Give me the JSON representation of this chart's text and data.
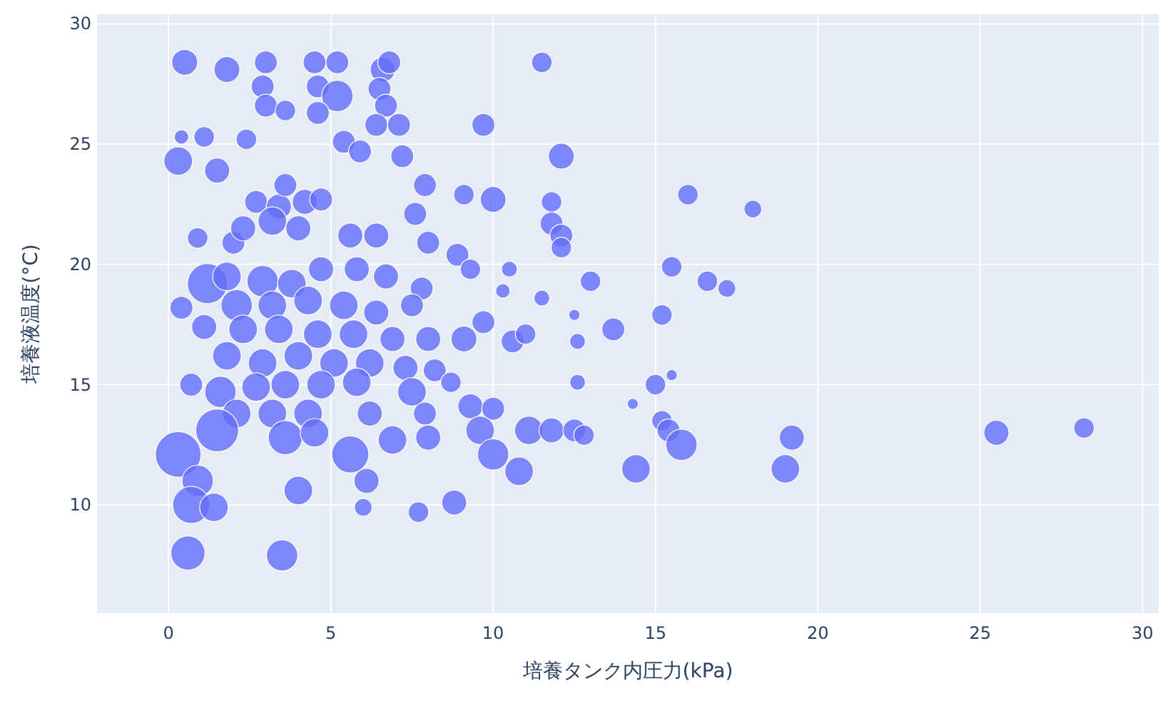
{
  "chart_data": {
    "type": "bubble",
    "xlabel": "培養タンク内圧力(kPa)",
    "ylabel": "培養液温度(°C)",
    "xlim": [
      -2.2,
      30.5
    ],
    "ylim": [
      5.5,
      30.4
    ],
    "xticks": [
      0,
      5,
      10,
      15,
      20,
      25,
      30
    ],
    "yticks": [
      10,
      15,
      20,
      25,
      30
    ],
    "grid": true,
    "series": [
      {
        "color": "#636efa",
        "x": [
          0.5,
          1.8,
          3.0,
          4.5,
          5.2,
          6.6,
          6.8,
          11.5,
          2.9,
          3.0,
          4.6,
          5.2,
          6.5,
          6.7,
          3.6,
          4.6,
          0.4,
          1.1,
          2.4,
          0.3,
          1.5,
          6.4,
          7.1,
          9.7,
          12.1,
          5.4,
          5.9,
          7.2,
          2.7,
          3.4,
          3.6,
          4.2,
          4.7,
          10.0,
          9.1,
          11.8,
          16.0,
          18.0,
          7.9,
          7.6,
          0.9,
          2.0,
          2.3,
          3.2,
          4.0,
          5.6,
          6.4,
          8.0,
          11.8,
          12.1,
          12.1,
          15.5,
          16.6,
          17.2,
          13.0,
          8.9,
          9.3,
          10.5,
          1.2,
          0.4,
          1.8,
          2.9,
          3.8,
          4.7,
          5.8,
          6.7,
          7.8,
          2.1,
          3.2,
          4.3,
          5.4,
          6.4,
          7.5,
          1.1,
          2.3,
          3.4,
          4.6,
          5.7,
          6.9,
          8.0,
          9.1,
          9.7,
          10.3,
          11.5,
          10.6,
          11.0,
          12.5,
          12.6,
          13.7,
          15.2,
          1.8,
          2.9,
          4.0,
          5.1,
          6.2,
          7.3,
          8.2,
          0.7,
          1.6,
          2.7,
          3.6,
          4.7,
          5.8,
          7.5,
          8.7,
          12.6,
          15.0,
          15.5,
          14.3,
          2.1,
          3.2,
          4.3,
          6.2,
          7.9,
          9.3,
          10.0,
          1.5,
          3.6,
          4.5,
          5.6,
          6.9,
          8.0,
          9.6,
          11.1,
          11.8,
          12.5,
          12.8,
          15.2,
          15.4,
          15.8,
          19.2,
          25.5,
          28.2,
          0.3,
          10.0,
          0.9,
          6.1,
          10.8,
          14.4,
          19.0,
          0.7,
          1.4,
          4.0,
          6.0,
          7.7,
          8.8,
          0.6,
          3.5
        ],
        "values": [
          28.4,
          28.1,
          28.4,
          28.4,
          28.4,
          28.1,
          28.4,
          28.4,
          27.4,
          26.6,
          27.4,
          27.0,
          27.3,
          26.6,
          26.4,
          26.3,
          25.3,
          25.3,
          25.2,
          24.3,
          23.9,
          25.8,
          25.8,
          25.8,
          24.5,
          25.1,
          24.7,
          24.5,
          22.6,
          22.4,
          23.3,
          22.6,
          22.7,
          22.7,
          22.9,
          22.6,
          22.9,
          22.3,
          23.3,
          22.1,
          21.1,
          20.9,
          21.5,
          21.8,
          21.5,
          21.2,
          21.2,
          20.9,
          21.7,
          21.2,
          20.7,
          19.9,
          19.3,
          19.0,
          19.3,
          20.4,
          19.8,
          19.8,
          19.2,
          18.2,
          19.5,
          19.3,
          19.2,
          19.8,
          19.8,
          19.5,
          19.0,
          18.3,
          18.3,
          18.5,
          18.3,
          18.0,
          18.3,
          17.4,
          17.3,
          17.3,
          17.1,
          17.1,
          16.9,
          16.9,
          16.9,
          17.6,
          18.9,
          18.6,
          16.8,
          17.1,
          17.9,
          16.8,
          17.3,
          17.9,
          16.2,
          15.9,
          16.2,
          15.9,
          15.9,
          15.7,
          15.6,
          15.0,
          14.7,
          14.9,
          15.0,
          15.0,
          15.1,
          14.7,
          15.1,
          15.1,
          15.0,
          15.4,
          14.2,
          13.8,
          13.8,
          13.8,
          13.8,
          13.8,
          14.1,
          14.0,
          13.1,
          12.8,
          13.0,
          12.1,
          12.7,
          12.8,
          13.1,
          13.1,
          13.1,
          13.1,
          12.9,
          13.5,
          13.1,
          12.5,
          12.8,
          13.0,
          13.2,
          12.1,
          12.1,
          11.0,
          11.0,
          11.4,
          11.5,
          11.5,
          10.0,
          9.9,
          10.6,
          9.9,
          9.7,
          10.1,
          8.0,
          7.9
        ],
        "sizes": [
          0.32,
          0.32,
          0.25,
          0.25,
          0.25,
          0.3,
          0.25,
          0.2,
          0.25,
          0.25,
          0.25,
          0.47,
          0.25,
          0.25,
          0.2,
          0.25,
          0.1,
          0.2,
          0.2,
          0.39,
          0.3,
          0.25,
          0.25,
          0.25,
          0.32,
          0.25,
          0.25,
          0.25,
          0.25,
          0.3,
          0.25,
          0.3,
          0.25,
          0.32,
          0.2,
          0.2,
          0.2,
          0.15,
          0.25,
          0.25,
          0.2,
          0.25,
          0.3,
          0.39,
          0.3,
          0.3,
          0.3,
          0.25,
          0.25,
          0.25,
          0.2,
          0.2,
          0.2,
          0.15,
          0.2,
          0.25,
          0.2,
          0.12,
          0.77,
          0.25,
          0.39,
          0.47,
          0.39,
          0.3,
          0.3,
          0.3,
          0.25,
          0.47,
          0.39,
          0.39,
          0.39,
          0.3,
          0.25,
          0.3,
          0.39,
          0.39,
          0.39,
          0.39,
          0.3,
          0.3,
          0.32,
          0.25,
          0.1,
          0.12,
          0.25,
          0.2,
          0.06,
          0.12,
          0.25,
          0.2,
          0.39,
          0.39,
          0.39,
          0.39,
          0.39,
          0.3,
          0.25,
          0.25,
          0.47,
          0.39,
          0.39,
          0.39,
          0.39,
          0.39,
          0.2,
          0.12,
          0.2,
          0.06,
          0.06,
          0.39,
          0.39,
          0.39,
          0.3,
          0.25,
          0.3,
          0.25,
          0.88,
          0.56,
          0.39,
          0.66,
          0.39,
          0.3,
          0.39,
          0.39,
          0.3,
          0.25,
          0.2,
          0.2,
          0.25,
          0.47,
          0.3,
          0.3,
          0.2,
          1,
          0.47,
          0.47,
          0.3,
          0.39,
          0.39,
          0.39,
          0.66,
          0.39,
          0.39,
          0.15,
          0.2,
          0.3,
          0.56,
          0.47
        ]
      }
    ]
  }
}
